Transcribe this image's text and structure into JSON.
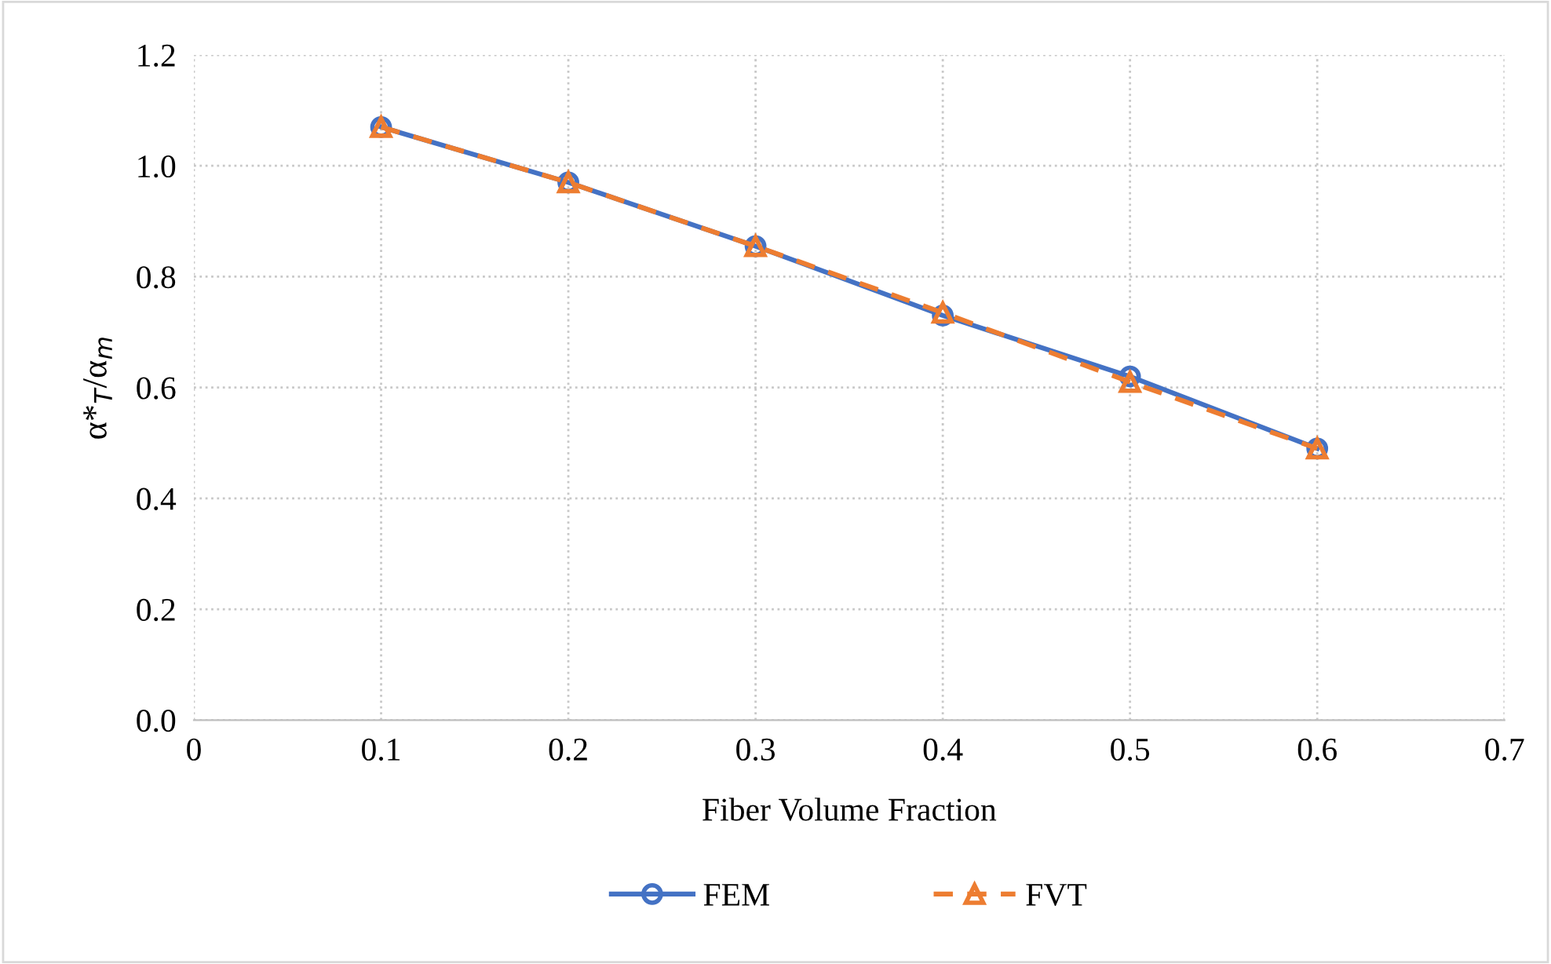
{
  "chart_data": {
    "type": "line",
    "xlabel": "Fiber Volume Fraction",
    "ylabel": "α*$_{T}$/α$_{m}$",
    "x": [
      0.1,
      0.2,
      0.3,
      0.4,
      0.5,
      0.6
    ],
    "series": [
      {
        "name": "FEM",
        "color": "#4472c4",
        "values": [
          1.07,
          0.97,
          0.855,
          0.73,
          0.62,
          0.49
        ],
        "marker": "circle",
        "line_style": "solid"
      },
      {
        "name": "FVT",
        "color": "#ed7d31",
        "values": [
          1.07,
          0.97,
          0.855,
          0.735,
          0.61,
          0.49
        ],
        "marker": "triangle",
        "line_style": "dashed"
      }
    ],
    "xlim": [
      0,
      0.7
    ],
    "xticks": [
      {
        "value": 0,
        "label": "0"
      },
      0.1,
      0.2,
      0.3,
      0.4,
      0.5,
      0.6,
      0.7
    ],
    "ylim": [
      0,
      1.2
    ],
    "yticks": [
      {
        "value": 0,
        "label": "0.0"
      },
      0.2,
      0.4,
      0.6,
      0.8,
      {
        "value": 1.0,
        "label": "1.0"
      },
      1.2
    ],
    "grid": true,
    "legend": "bottom"
  }
}
